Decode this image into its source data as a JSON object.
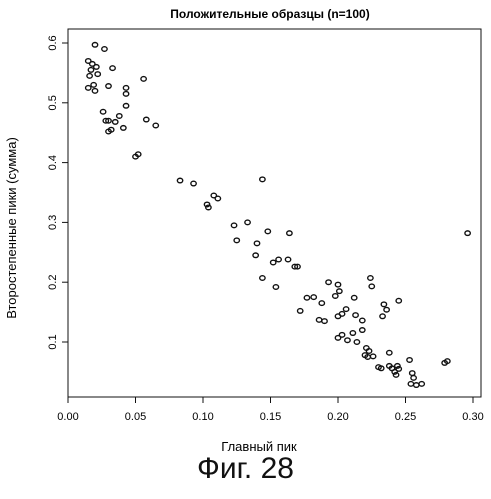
{
  "chart_data": {
    "type": "scatter",
    "title": "Положительные образцы (n=100)",
    "xlabel": "Главный пик",
    "ylabel": "Второстепенные пики (сумма)",
    "xlim": [
      0.0,
      0.3
    ],
    "ylim": [
      0.05,
      0.6
    ],
    "xticks": [
      "0.00",
      "0.05",
      "0.10",
      "0.15",
      "0.20",
      "0.25",
      "0.30"
    ],
    "yticks": [
      "0.1",
      "0.2",
      "0.3",
      "0.4",
      "0.5",
      "0.6"
    ],
    "grid": false,
    "series": [
      {
        "points": [
          [
            0.015,
            0.57
          ],
          [
            0.018,
            0.565
          ],
          [
            0.02,
            0.597
          ],
          [
            0.017,
            0.555
          ],
          [
            0.021,
            0.56
          ],
          [
            0.022,
            0.548
          ],
          [
            0.016,
            0.545
          ],
          [
            0.027,
            0.59
          ],
          [
            0.033,
            0.558
          ],
          [
            0.019,
            0.53
          ],
          [
            0.015,
            0.525
          ],
          [
            0.02,
            0.52
          ],
          [
            0.03,
            0.528
          ],
          [
            0.043,
            0.525
          ],
          [
            0.043,
            0.515
          ],
          [
            0.056,
            0.54
          ],
          [
            0.026,
            0.485
          ],
          [
            0.028,
            0.47
          ],
          [
            0.03,
            0.47
          ],
          [
            0.032,
            0.455
          ],
          [
            0.03,
            0.452
          ],
          [
            0.035,
            0.468
          ],
          [
            0.038,
            0.478
          ],
          [
            0.041,
            0.458
          ],
          [
            0.043,
            0.495
          ],
          [
            0.058,
            0.472
          ],
          [
            0.065,
            0.462
          ],
          [
            0.05,
            0.41
          ],
          [
            0.052,
            0.414
          ],
          [
            0.083,
            0.37
          ],
          [
            0.093,
            0.365
          ],
          [
            0.103,
            0.33
          ],
          [
            0.104,
            0.325
          ],
          [
            0.108,
            0.345
          ],
          [
            0.111,
            0.34
          ],
          [
            0.123,
            0.295
          ],
          [
            0.125,
            0.27
          ],
          [
            0.133,
            0.3
          ],
          [
            0.14,
            0.265
          ],
          [
            0.139,
            0.245
          ],
          [
            0.144,
            0.372
          ],
          [
            0.148,
            0.285
          ],
          [
            0.144,
            0.207
          ],
          [
            0.152,
            0.233
          ],
          [
            0.156,
            0.238
          ],
          [
            0.163,
            0.238
          ],
          [
            0.164,
            0.282
          ],
          [
            0.154,
            0.192
          ],
          [
            0.168,
            0.226
          ],
          [
            0.17,
            0.226
          ],
          [
            0.172,
            0.152
          ],
          [
            0.177,
            0.174
          ],
          [
            0.182,
            0.175
          ],
          [
            0.186,
            0.137
          ],
          [
            0.188,
            0.165
          ],
          [
            0.19,
            0.135
          ],
          [
            0.193,
            0.2
          ],
          [
            0.198,
            0.177
          ],
          [
            0.2,
            0.196
          ],
          [
            0.201,
            0.185
          ],
          [
            0.2,
            0.143
          ],
          [
            0.203,
            0.147
          ],
          [
            0.206,
            0.155
          ],
          [
            0.212,
            0.174
          ],
          [
            0.213,
            0.145
          ],
          [
            0.218,
            0.136
          ],
          [
            0.224,
            0.207
          ],
          [
            0.225,
            0.193
          ],
          [
            0.2,
            0.107
          ],
          [
            0.203,
            0.112
          ],
          [
            0.207,
            0.103
          ],
          [
            0.211,
            0.115
          ],
          [
            0.214,
            0.1
          ],
          [
            0.218,
            0.12
          ],
          [
            0.221,
            0.09
          ],
          [
            0.223,
            0.085
          ],
          [
            0.22,
            0.078
          ],
          [
            0.222,
            0.075
          ],
          [
            0.226,
            0.076
          ],
          [
            0.23,
            0.058
          ],
          [
            0.232,
            0.056
          ],
          [
            0.233,
            0.143
          ],
          [
            0.236,
            0.154
          ],
          [
            0.234,
            0.163
          ],
          [
            0.238,
            0.082
          ],
          [
            0.24,
            0.056
          ],
          [
            0.242,
            0.05
          ],
          [
            0.244,
            0.06
          ],
          [
            0.243,
            0.045
          ],
          [
            0.245,
            0.055
          ],
          [
            0.245,
            0.169
          ],
          [
            0.253,
            0.07
          ],
          [
            0.254,
            0.03
          ],
          [
            0.255,
            0.048
          ],
          [
            0.256,
            0.04
          ],
          [
            0.258,
            0.028
          ],
          [
            0.262,
            0.03
          ],
          [
            0.279,
            0.065
          ],
          [
            0.281,
            0.068
          ],
          [
            0.296,
            0.282
          ],
          [
            0.238,
            0.06
          ]
        ]
      }
    ]
  },
  "caption": "Фиг. 28"
}
